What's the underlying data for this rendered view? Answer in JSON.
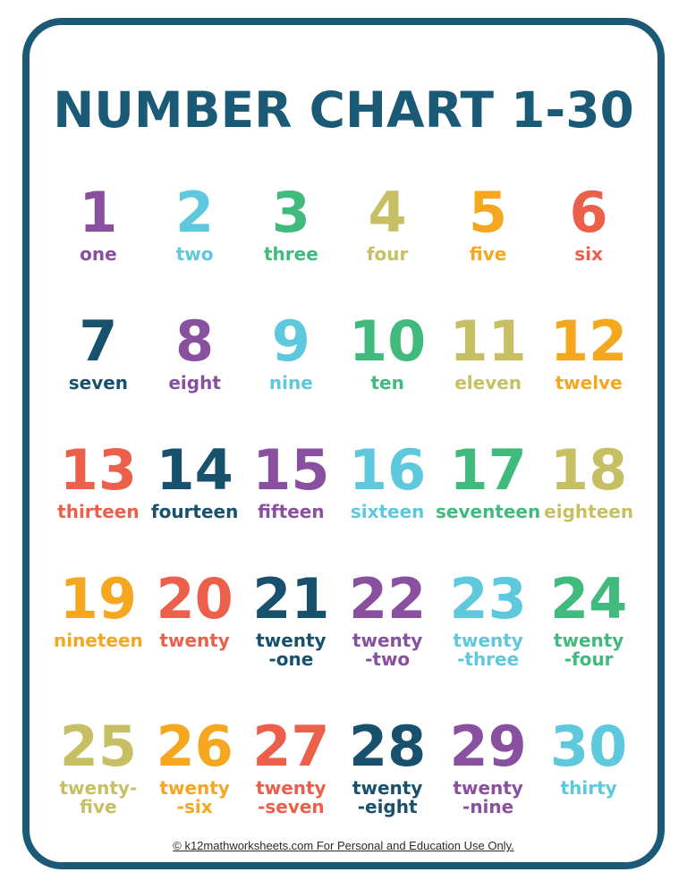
{
  "page": {
    "title": "NUMBER CHART 1-30",
    "footer": "© k12mathworksheets.com For Personal and Education Use Only.",
    "background": "#ffffff",
    "border_color": "#1b5a76",
    "title_color": "#1b5a76",
    "footer_text_color": "#2b2b2b"
  },
  "palette": {
    "purple": "#8a50a0",
    "blue": "#5ec8dc",
    "green": "#41ba7d",
    "olive": "#c6bf64",
    "orange": "#f4a71f",
    "coral": "#ec5f4b",
    "teal": "#17516d"
  },
  "chart_data": {
    "type": "table",
    "title": "NUMBER CHART 1-30",
    "columns": 6,
    "rows": 5,
    "cells": [
      {
        "number": "1",
        "word": "one",
        "word_lines": [
          "one"
        ],
        "color": "purple"
      },
      {
        "number": "2",
        "word": "two",
        "word_lines": [
          "two"
        ],
        "color": "blue"
      },
      {
        "number": "3",
        "word": "three",
        "word_lines": [
          "three"
        ],
        "color": "green"
      },
      {
        "number": "4",
        "word": "four",
        "word_lines": [
          "four"
        ],
        "color": "olive"
      },
      {
        "number": "5",
        "word": "five",
        "word_lines": [
          "five"
        ],
        "color": "orange"
      },
      {
        "number": "6",
        "word": "six",
        "word_lines": [
          "six"
        ],
        "color": "coral"
      },
      {
        "number": "7",
        "word": "seven",
        "word_lines": [
          "seven"
        ],
        "color": "teal"
      },
      {
        "number": "8",
        "word": "eight",
        "word_lines": [
          "eight"
        ],
        "color": "purple"
      },
      {
        "number": "9",
        "word": "nine",
        "word_lines": [
          "nine"
        ],
        "color": "blue"
      },
      {
        "number": "10",
        "word": "ten",
        "word_lines": [
          "ten"
        ],
        "color": "green"
      },
      {
        "number": "11",
        "word": "eleven",
        "word_lines": [
          "eleven"
        ],
        "color": "olive"
      },
      {
        "number": "12",
        "word": "twelve",
        "word_lines": [
          "twelve"
        ],
        "color": "orange"
      },
      {
        "number": "13",
        "word": "thirteen",
        "word_lines": [
          "thirteen"
        ],
        "color": "coral"
      },
      {
        "number": "14",
        "word": "fourteen",
        "word_lines": [
          "fourteen"
        ],
        "color": "teal"
      },
      {
        "number": "15",
        "word": "fifteen",
        "word_lines": [
          "fifteen"
        ],
        "color": "purple"
      },
      {
        "number": "16",
        "word": "sixteen",
        "word_lines": [
          "sixteen"
        ],
        "color": "blue"
      },
      {
        "number": "17",
        "word": "seventeen",
        "word_lines": [
          "seventeen"
        ],
        "color": "green"
      },
      {
        "number": "18",
        "word": "eighteen",
        "word_lines": [
          "eighteen"
        ],
        "color": "olive"
      },
      {
        "number": "19",
        "word": "nineteen",
        "word_lines": [
          "nineteen"
        ],
        "color": "orange"
      },
      {
        "number": "20",
        "word": "twenty",
        "word_lines": [
          "twenty"
        ],
        "color": "coral"
      },
      {
        "number": "21",
        "word": "twenty-one",
        "word_lines": [
          "twenty",
          "-one"
        ],
        "color": "teal"
      },
      {
        "number": "22",
        "word": "twenty-two",
        "word_lines": [
          "twenty",
          "-two"
        ],
        "color": "purple"
      },
      {
        "number": "23",
        "word": "twenty-three",
        "word_lines": [
          "twenty",
          "-three"
        ],
        "color": "blue"
      },
      {
        "number": "24",
        "word": "twenty-four",
        "word_lines": [
          "twenty",
          "-four"
        ],
        "color": "green"
      },
      {
        "number": "25",
        "word": "twenty-five",
        "word_lines": [
          "twenty-",
          "five"
        ],
        "color": "olive"
      },
      {
        "number": "26",
        "word": "twenty-six",
        "word_lines": [
          "twenty",
          "-six"
        ],
        "color": "orange"
      },
      {
        "number": "27",
        "word": "twenty-seven",
        "word_lines": [
          "twenty",
          "-seven"
        ],
        "color": "coral"
      },
      {
        "number": "28",
        "word": "twenty-eight",
        "word_lines": [
          "twenty",
          "-eight"
        ],
        "color": "teal"
      },
      {
        "number": "29",
        "word": "twenty-nine",
        "word_lines": [
          "twenty",
          "-nine"
        ],
        "color": "purple"
      },
      {
        "number": "30",
        "word": "thirty",
        "word_lines": [
          "thirty"
        ],
        "color": "blue"
      }
    ]
  }
}
